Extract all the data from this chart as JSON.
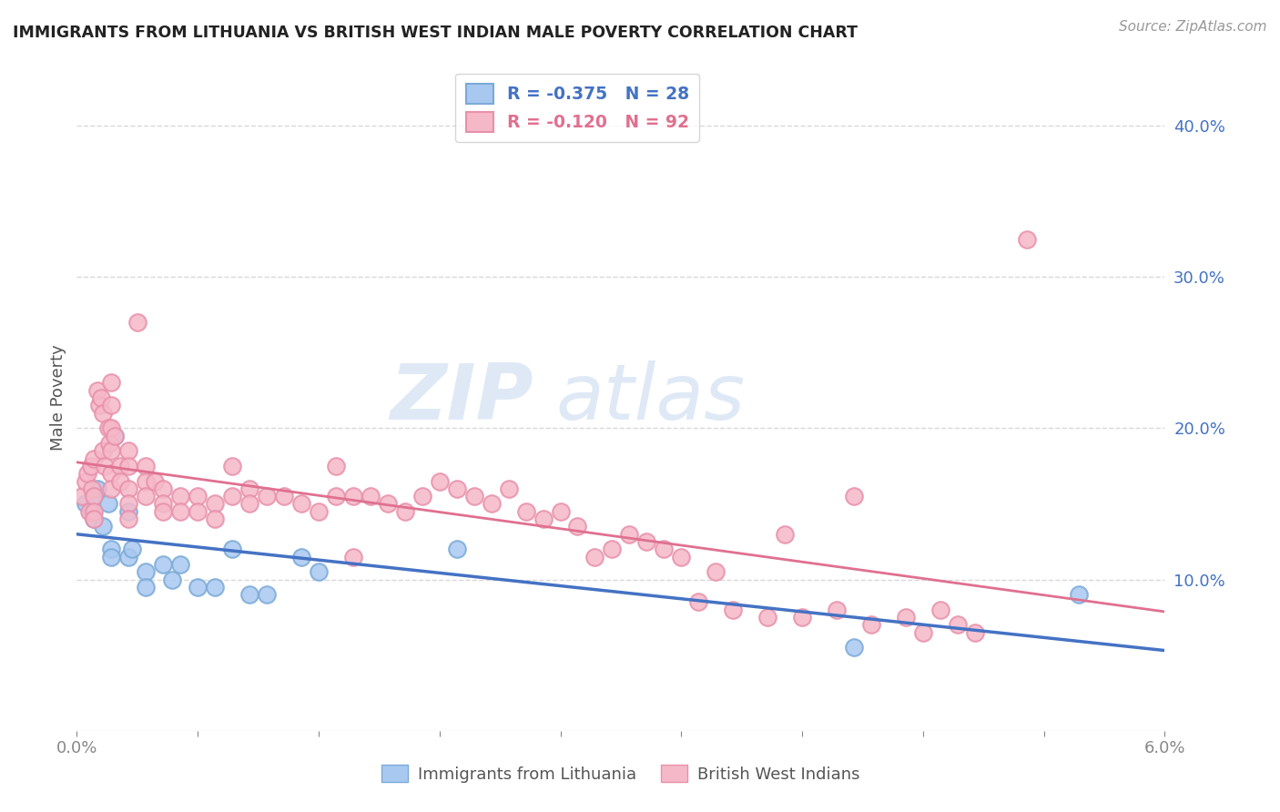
{
  "title": "IMMIGRANTS FROM LITHUANIA VS BRITISH WEST INDIAN MALE POVERTY CORRELATION CHART",
  "source": "Source: ZipAtlas.com",
  "ylabel": "Male Poverty",
  "watermark_zip": "ZIP",
  "watermark_atlas": "atlas",
  "legend_blue_r": "R = -0.375",
  "legend_blue_n": "N = 28",
  "legend_pink_r": "R = -0.120",
  "legend_pink_n": "N = 92",
  "legend_label_blue": "Immigrants from Lithuania",
  "legend_label_pink": "British West Indians",
  "blue_color": "#a8c8f0",
  "pink_color": "#f5b8c8",
  "blue_edge_color": "#7aaad8",
  "pink_edge_color": "#e890aa",
  "blue_line_color": "#4472c4",
  "pink_line_color": "#e07090",
  "background_color": "#ffffff",
  "grid_color": "#d8d8d8",
  "title_color": "#222222",
  "source_color": "#999999",
  "right_tick_color": "#4472c4",
  "bottom_tick_color": "#888888",
  "blue_scatter": [
    [
      0.0005,
      0.15
    ],
    [
      0.0008,
      0.145
    ],
    [
      0.001,
      0.155
    ],
    [
      0.001,
      0.14
    ],
    [
      0.0012,
      0.16
    ],
    [
      0.0015,
      0.135
    ],
    [
      0.0018,
      0.15
    ],
    [
      0.002,
      0.12
    ],
    [
      0.002,
      0.115
    ],
    [
      0.0022,
      0.195
    ],
    [
      0.003,
      0.145
    ],
    [
      0.003,
      0.115
    ],
    [
      0.0032,
      0.12
    ],
    [
      0.004,
      0.105
    ],
    [
      0.004,
      0.095
    ],
    [
      0.005,
      0.11
    ],
    [
      0.0055,
      0.1
    ],
    [
      0.006,
      0.11
    ],
    [
      0.007,
      0.095
    ],
    [
      0.008,
      0.095
    ],
    [
      0.009,
      0.12
    ],
    [
      0.01,
      0.09
    ],
    [
      0.011,
      0.09
    ],
    [
      0.013,
      0.115
    ],
    [
      0.014,
      0.105
    ],
    [
      0.022,
      0.12
    ],
    [
      0.045,
      0.055
    ],
    [
      0.058,
      0.09
    ]
  ],
  "pink_scatter": [
    [
      0.0003,
      0.155
    ],
    [
      0.0005,
      0.165
    ],
    [
      0.0006,
      0.17
    ],
    [
      0.0007,
      0.145
    ],
    [
      0.0008,
      0.175
    ],
    [
      0.0009,
      0.16
    ],
    [
      0.001,
      0.18
    ],
    [
      0.001,
      0.155
    ],
    [
      0.001,
      0.145
    ],
    [
      0.001,
      0.14
    ],
    [
      0.0012,
      0.225
    ],
    [
      0.0013,
      0.215
    ],
    [
      0.0014,
      0.22
    ],
    [
      0.0015,
      0.21
    ],
    [
      0.0015,
      0.185
    ],
    [
      0.0016,
      0.175
    ],
    [
      0.0018,
      0.2
    ],
    [
      0.0019,
      0.19
    ],
    [
      0.002,
      0.23
    ],
    [
      0.002,
      0.215
    ],
    [
      0.002,
      0.2
    ],
    [
      0.002,
      0.185
    ],
    [
      0.002,
      0.17
    ],
    [
      0.002,
      0.16
    ],
    [
      0.0022,
      0.195
    ],
    [
      0.0025,
      0.175
    ],
    [
      0.0025,
      0.165
    ],
    [
      0.003,
      0.185
    ],
    [
      0.003,
      0.175
    ],
    [
      0.003,
      0.16
    ],
    [
      0.003,
      0.15
    ],
    [
      0.003,
      0.14
    ],
    [
      0.0035,
      0.27
    ],
    [
      0.004,
      0.175
    ],
    [
      0.004,
      0.165
    ],
    [
      0.004,
      0.155
    ],
    [
      0.0045,
      0.165
    ],
    [
      0.005,
      0.16
    ],
    [
      0.005,
      0.15
    ],
    [
      0.005,
      0.145
    ],
    [
      0.006,
      0.155
    ],
    [
      0.006,
      0.145
    ],
    [
      0.007,
      0.155
    ],
    [
      0.007,
      0.145
    ],
    [
      0.008,
      0.15
    ],
    [
      0.008,
      0.14
    ],
    [
      0.009,
      0.175
    ],
    [
      0.009,
      0.155
    ],
    [
      0.01,
      0.16
    ],
    [
      0.01,
      0.15
    ],
    [
      0.011,
      0.155
    ],
    [
      0.012,
      0.155
    ],
    [
      0.013,
      0.15
    ],
    [
      0.014,
      0.145
    ],
    [
      0.015,
      0.175
    ],
    [
      0.015,
      0.155
    ],
    [
      0.016,
      0.155
    ],
    [
      0.016,
      0.115
    ],
    [
      0.017,
      0.155
    ],
    [
      0.018,
      0.15
    ],
    [
      0.019,
      0.145
    ],
    [
      0.02,
      0.155
    ],
    [
      0.021,
      0.165
    ],
    [
      0.022,
      0.16
    ],
    [
      0.023,
      0.155
    ],
    [
      0.024,
      0.15
    ],
    [
      0.025,
      0.16
    ],
    [
      0.026,
      0.145
    ],
    [
      0.027,
      0.14
    ],
    [
      0.028,
      0.145
    ],
    [
      0.029,
      0.135
    ],
    [
      0.03,
      0.115
    ],
    [
      0.031,
      0.12
    ],
    [
      0.032,
      0.13
    ],
    [
      0.033,
      0.125
    ],
    [
      0.034,
      0.12
    ],
    [
      0.035,
      0.115
    ],
    [
      0.036,
      0.085
    ],
    [
      0.037,
      0.105
    ],
    [
      0.038,
      0.08
    ],
    [
      0.04,
      0.075
    ],
    [
      0.041,
      0.13
    ],
    [
      0.042,
      0.075
    ],
    [
      0.044,
      0.08
    ],
    [
      0.045,
      0.155
    ],
    [
      0.046,
      0.07
    ],
    [
      0.048,
      0.075
    ],
    [
      0.049,
      0.065
    ],
    [
      0.05,
      0.08
    ],
    [
      0.051,
      0.07
    ],
    [
      0.052,
      0.065
    ],
    [
      0.055,
      0.325
    ]
  ],
  "xlim": [
    0.0,
    0.063
  ],
  "ylim": [
    0.0,
    0.44
  ],
  "xtick_positions": [
    0.0,
    0.007,
    0.014,
    0.021,
    0.028,
    0.035,
    0.042,
    0.049,
    0.056,
    0.063
  ],
  "ytick_positions": [
    0.1,
    0.2,
    0.3,
    0.4
  ]
}
